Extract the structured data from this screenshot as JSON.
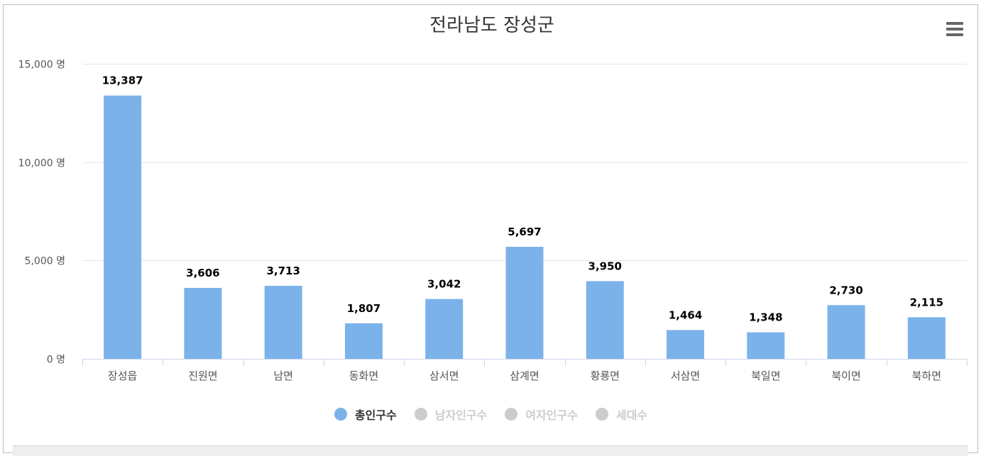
{
  "chart_data": {
    "type": "bar",
    "title": "전라남도 장성군",
    "categories": [
      "장성읍",
      "진원면",
      "남면",
      "동화면",
      "삼서면",
      "삼계면",
      "황룡면",
      "서삼면",
      "북일면",
      "북이면",
      "북하면"
    ],
    "series": [
      {
        "name": "총인구수",
        "values": [
          13387,
          3606,
          3713,
          1807,
          3042,
          5697,
          3950,
          1464,
          1348,
          2730,
          2115
        ],
        "value_labels": [
          "13,387",
          "3,606",
          "3,713",
          "1,807",
          "3,042",
          "5,697",
          "3,950",
          "1,464",
          "1,348",
          "2,730",
          "2,115"
        ]
      }
    ],
    "ylim": [
      0,
      15000
    ],
    "y_ticks": [
      0,
      5000,
      10000,
      15000
    ],
    "y_tick_labels": [
      "0 명",
      "5,000 명",
      "10,000 명",
      "15,000 명"
    ],
    "grid": true,
    "legend_position": "bottom-center",
    "bar_color": "#7cb2ea"
  },
  "legend": [
    {
      "label": "총인구수",
      "active": true,
      "color": "#7cb2ea"
    },
    {
      "label": "남자인구수",
      "active": false,
      "color": "#cccccc"
    },
    {
      "label": "여자인구수",
      "active": false,
      "color": "#cccccc"
    },
    {
      "label": "세대수",
      "active": false,
      "color": "#cccccc"
    }
  ],
  "colors": {
    "title": "#333333",
    "axis_label": "#555555",
    "gridline": "#e6e6e6",
    "axis_line": "#ccd6eb",
    "data_label": "#000000",
    "legend_active_text": "#333333",
    "legend_inactive_text": "#cccccc"
  },
  "menu_icon": "hamburger-menu-icon"
}
